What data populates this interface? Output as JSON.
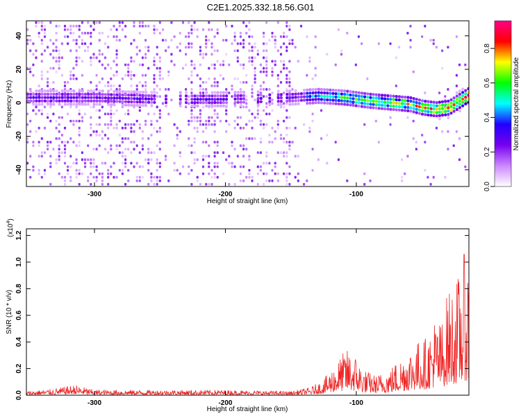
{
  "chart_data": [
    {
      "type": "heatmap",
      "title": "C2E1.2025.332.18.56.G01",
      "xlabel": "Height of straight line (km)",
      "ylabel": "Frequency (Hz)",
      "xlim": [
        -352,
        -14
      ],
      "ylim": [
        -50,
        49
      ],
      "x_ticks": [
        -300,
        -200,
        -100
      ],
      "x_tick_labels": [
        "-300",
        "-200",
        "-100"
      ],
      "y_ticks": [
        -40,
        -20,
        0,
        20,
        40
      ],
      "y_tick_labels": [
        "-40",
        "-20",
        "0",
        "20",
        "40"
      ],
      "colorbar": {
        "label": "Normalized spectral amplitude",
        "range": [
          0,
          0.96
        ],
        "ticks": [
          0.0,
          0.2,
          0.4,
          0.6,
          0.8
        ],
        "tick_labels": [
          "0.0",
          "0.2",
          "0.4",
          "0.6",
          "0.8"
        ],
        "colors": [
          "#ffffff",
          "#cc88ff",
          "#7700ee",
          "#2200ff",
          "#00ffff",
          "#00ff00",
          "#ffff00",
          "#ff0000",
          "#ff0088"
        ]
      },
      "signal_ridge": {
        "x": [
          -350,
          -300,
          -250,
          -220,
          -200,
          -150,
          -130,
          -110,
          -100,
          -90,
          -75,
          -60,
          -50,
          -40,
          -30,
          -14
        ],
        "y": [
          3,
          3,
          2,
          2,
          2,
          3,
          4,
          3,
          2,
          1,
          0,
          -1,
          -3,
          -4,
          -3,
          5
        ]
      }
    },
    {
      "type": "line",
      "xlabel": "Height of straight line (km)",
      "ylabel": "SNR (10 * v/v)",
      "y_scale_label": "(x10",
      "y_scale_exponent": "4",
      "y_scale_suffix": ")",
      "xlim": [
        -352,
        -14
      ],
      "ylim": [
        0,
        1.25
      ],
      "x_ticks": [
        -300,
        -200,
        -100
      ],
      "x_tick_labels": [
        "-300",
        "-200",
        "-100"
      ],
      "y_ticks": [
        0.0,
        0.2,
        0.4,
        0.6,
        0.8,
        1.0,
        1.2
      ],
      "y_tick_labels": [
        "0.0",
        "0.2",
        "0.4",
        "0.6",
        "0.8",
        "1.0",
        "1.2"
      ],
      "series": [
        {
          "name": "SNR",
          "color": "#ee2222",
          "envelope_x": [
            -352,
            -330,
            -315,
            -300,
            -250,
            -200,
            -150,
            -135,
            -125,
            -115,
            -108,
            -100,
            -95,
            -85,
            -75,
            -65,
            -55,
            -45,
            -40,
            -35,
            -30,
            -25,
            -20,
            -17,
            -14
          ],
          "envelope_y": [
            0.03,
            0.05,
            0.08,
            0.04,
            0.04,
            0.04,
            0.03,
            0.06,
            0.12,
            0.25,
            0.35,
            0.3,
            0.2,
            0.15,
            0.2,
            0.3,
            0.4,
            0.45,
            0.6,
            0.55,
            0.8,
            0.85,
            0.95,
            1.1,
            1.0
          ]
        }
      ]
    }
  ]
}
